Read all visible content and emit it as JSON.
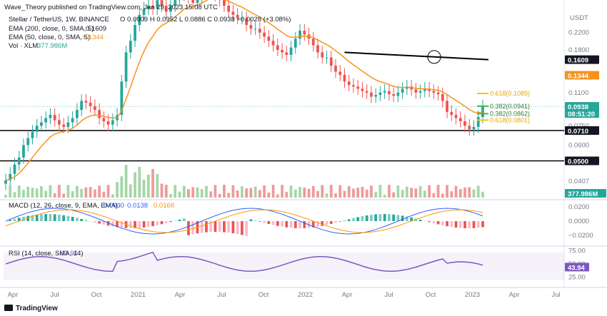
{
  "header": {
    "published": "Wave_Theory published on TradingView.com, Jan 29, 2023 15:08 UTC",
    "symbol": "Stellar / TetherUS, 1W, BINANCE",
    "ohlc": "O 0.0909  H 0.0952  L 0.0886  C 0.0938  +0.0028 (+3.08%)",
    "ema200": "EMA (200, close, 0, SMA, 5)",
    "ema200_value": "0.1609",
    "ema50": "EMA (50, close, 0, SMA, 5)",
    "ema50_value": "0.1344",
    "vol": "Vol · XLM",
    "vol_value": "377.986M",
    "currency": "USDT"
  },
  "footer": {
    "brand": "TradingView"
  },
  "colors": {
    "up": "#26a69a",
    "down": "#ef5350",
    "ema50": "#f7931a",
    "ema200": "#000000",
    "fib": "#f5c518",
    "fib_green": "#4caf50",
    "macd": "#2962ff",
    "signal": "#ff9800",
    "rsi": "#7e57c2",
    "price_box": "#26a69a"
  },
  "chart_data": [
    {
      "type": "candlestick",
      "title": "Stellar / TetherUS, 1W, BINANCE",
      "y_scale": "log",
      "ylim": [
        0.033,
        0.3
      ],
      "x_ticks": [
        "Apr",
        "Jul",
        "Oct",
        "2021",
        "Apr",
        "Jul",
        "Oct",
        "2022",
        "Apr",
        "Jul",
        "Oct",
        "2023",
        "Apr",
        "Jul"
      ],
      "y_ticks": [
        0.22,
        0.18,
        0.11,
        0.075,
        0.06
      ],
      "y_tick_labels": [
        "0.2200",
        "0.1800",
        "0.1100",
        "0.0750",
        "0.0600"
      ],
      "closes": [
        0.04,
        0.043,
        0.048,
        0.052,
        0.06,
        0.065,
        0.07,
        0.075,
        0.078,
        0.082,
        0.085,
        0.08,
        0.076,
        0.074,
        0.078,
        0.082,
        0.09,
        0.1,
        0.098,
        0.094,
        0.09,
        0.082,
        0.079,
        0.076,
        0.08,
        0.085,
        0.125,
        0.175,
        0.2,
        0.24,
        0.27,
        0.29,
        0.3,
        0.29,
        0.32,
        0.3,
        0.28,
        0.3,
        0.32,
        0.34,
        0.36,
        0.33,
        0.31,
        0.33,
        0.35,
        0.37,
        0.36,
        0.34,
        0.32,
        0.3,
        0.28,
        0.27,
        0.26,
        0.26,
        0.24,
        0.23,
        0.23,
        0.22,
        0.21,
        0.2,
        0.19,
        0.18,
        0.175,
        0.17,
        0.185,
        0.205,
        0.225,
        0.215,
        0.205,
        0.19,
        0.175,
        0.165,
        0.165,
        0.15,
        0.14,
        0.135,
        0.125,
        0.12,
        0.118,
        0.115,
        0.112,
        0.11,
        0.105,
        0.107,
        0.11,
        0.112,
        0.108,
        0.106,
        0.11,
        0.115,
        0.118,
        0.114,
        0.11,
        0.112,
        0.115,
        0.112,
        0.11,
        0.108,
        0.1,
        0.088,
        0.085,
        0.082,
        0.079,
        0.075,
        0.072,
        0.074,
        0.083,
        0.094
      ],
      "levels": [
        {
          "value": 0.071,
          "label": "0.0710"
        },
        {
          "value": 0.05,
          "label": "0.0500"
        }
      ],
      "fib_levels": [
        {
          "label": "0.618(0.1089)",
          "value": 0.1089
        },
        {
          "label": "0.382(0.0941)",
          "value": 0.0941
        },
        {
          "label": "0.382(0.0862)",
          "value": 0.0862
        },
        {
          "label": "0.618(0.0801)",
          "value": 0.0801
        }
      ],
      "price_labels": [
        {
          "label": "0.1609",
          "value": 0.1609,
          "style": "dark"
        },
        {
          "label": "0.1344",
          "value": 0.1344,
          "style": "orange"
        },
        {
          "label": "0.0938",
          "value": 0.0938,
          "style": "green"
        },
        {
          "label": "0.0710",
          "value": 0.071,
          "style": "dark"
        },
        {
          "label": "0.0500",
          "value": 0.05,
          "style": "dark"
        }
      ],
      "countdown": "08:51:20",
      "other_labels": [
        "0.0407"
      ]
    },
    {
      "type": "bar",
      "title": "Vol · XLM",
      "value_label": "377.986M"
    },
    {
      "type": "line",
      "title": "MACD (12, 26, close, 9, EMA, EMA)",
      "values_label": [
        "0.0030",
        "0.0138",
        "0.0168"
      ],
      "y_ticks": [
        "0.0200",
        "0.0000",
        "−0.0200"
      ]
    },
    {
      "type": "line",
      "title": "RSI (14, close, SMA, 14)",
      "value": 43.94,
      "value_label": "43.94",
      "y_ticks": [
        "75.00",
        "50.00",
        "25.00"
      ],
      "band": [
        30,
        70
      ]
    }
  ]
}
